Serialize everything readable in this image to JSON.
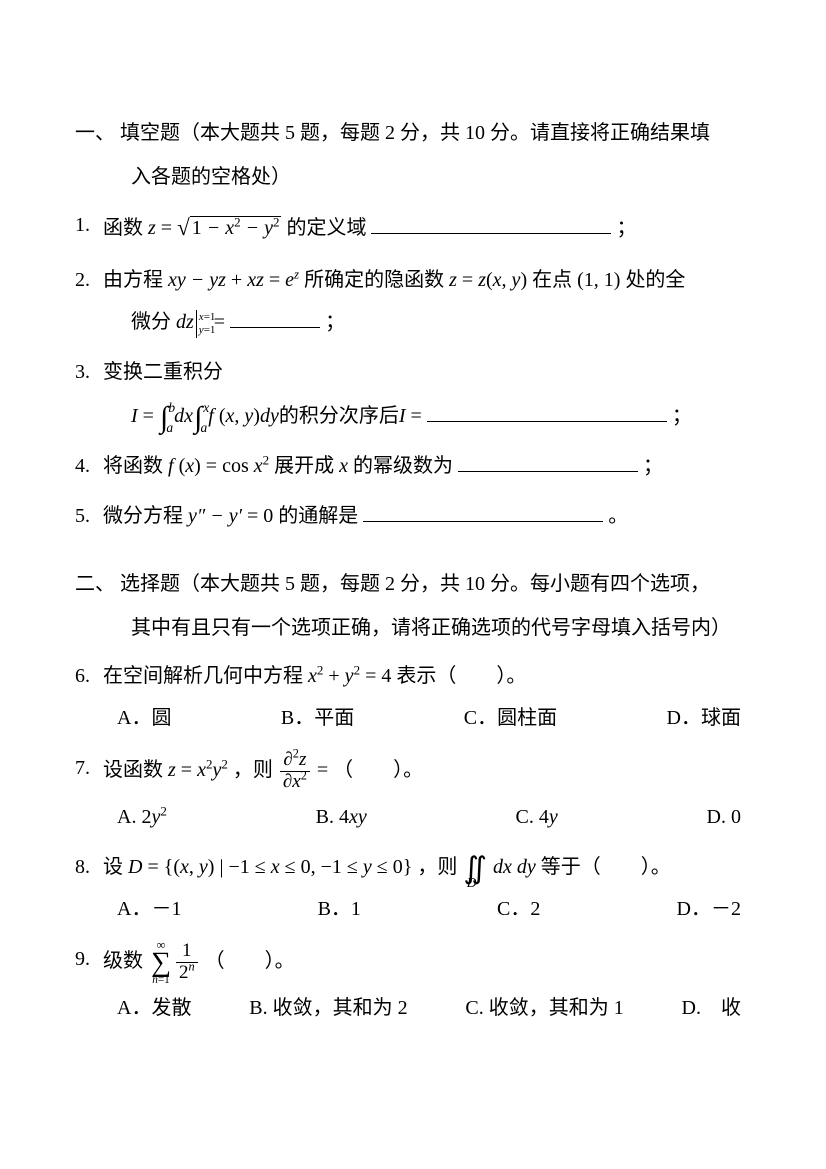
{
  "section1": {
    "title": "一、 填空题（本大题共 5 题，每题 2 分，共 10 分。请直接将正确结果填",
    "subtitle": "入各题的空格处）"
  },
  "q1": {
    "num": "1.",
    "pre": "函数",
    "post": "的定义域",
    "semi": "；"
  },
  "q2": {
    "num": "2.",
    "pre": "由方程",
    "mid": "所确定的隐函数",
    "post": "在点",
    "point": "(1, 1)",
    "end": "处的全",
    "line2a": "微分",
    "semi": "；"
  },
  "q3": {
    "num": "3.",
    "line1": "变换二重积分",
    "post": "的积分次序后",
    "semi": "；"
  },
  "q4": {
    "num": "4.",
    "pre": "将函数",
    "mid": "展开成",
    "post": "的幂级数为",
    "semi": "；"
  },
  "q5": {
    "num": "5.",
    "pre": "微分方程",
    "post": "的通解是",
    "period": "。"
  },
  "section2": {
    "title": "二、 选择题（本大题共 5 题，每题 2 分，共 10 分。每小题有四个选项，",
    "subtitle": "其中有且只有一个选项正确，请将正确选项的代号字母填入括号内）"
  },
  "q6": {
    "num": "6.",
    "pre": "在空间解析几何中方程",
    "post": "表示（　　）。",
    "opts": {
      "A": "A．圆",
      "B": "B．平面",
      "C": "C．圆柱面",
      "D": "D．球面"
    }
  },
  "q7": {
    "num": "7.",
    "pre": "设函数",
    "mid": "，则",
    "post": "（　　）。",
    "opts": {
      "A": "A.",
      "B": "B.",
      "C": "C.",
      "D": "D."
    },
    "optvals": {
      "A": "2y",
      "B": "4xy",
      "C": "4y",
      "D": "0"
    }
  },
  "q8": {
    "num": "8.",
    "pre": "设",
    "mid": "，则",
    "post": "等于（　　）。",
    "opts": {
      "A": "A．－1",
      "B": "B．1",
      "C": "C．2",
      "D": "D．－2"
    }
  },
  "q9": {
    "num": "9.",
    "pre": "级数",
    "post": "（　　）。",
    "opts": {
      "A": "A．发散",
      "B": "B. 收敛，其和为 2",
      "C": "C. 收敛，其和为 1",
      "D": "D.　收"
    }
  }
}
